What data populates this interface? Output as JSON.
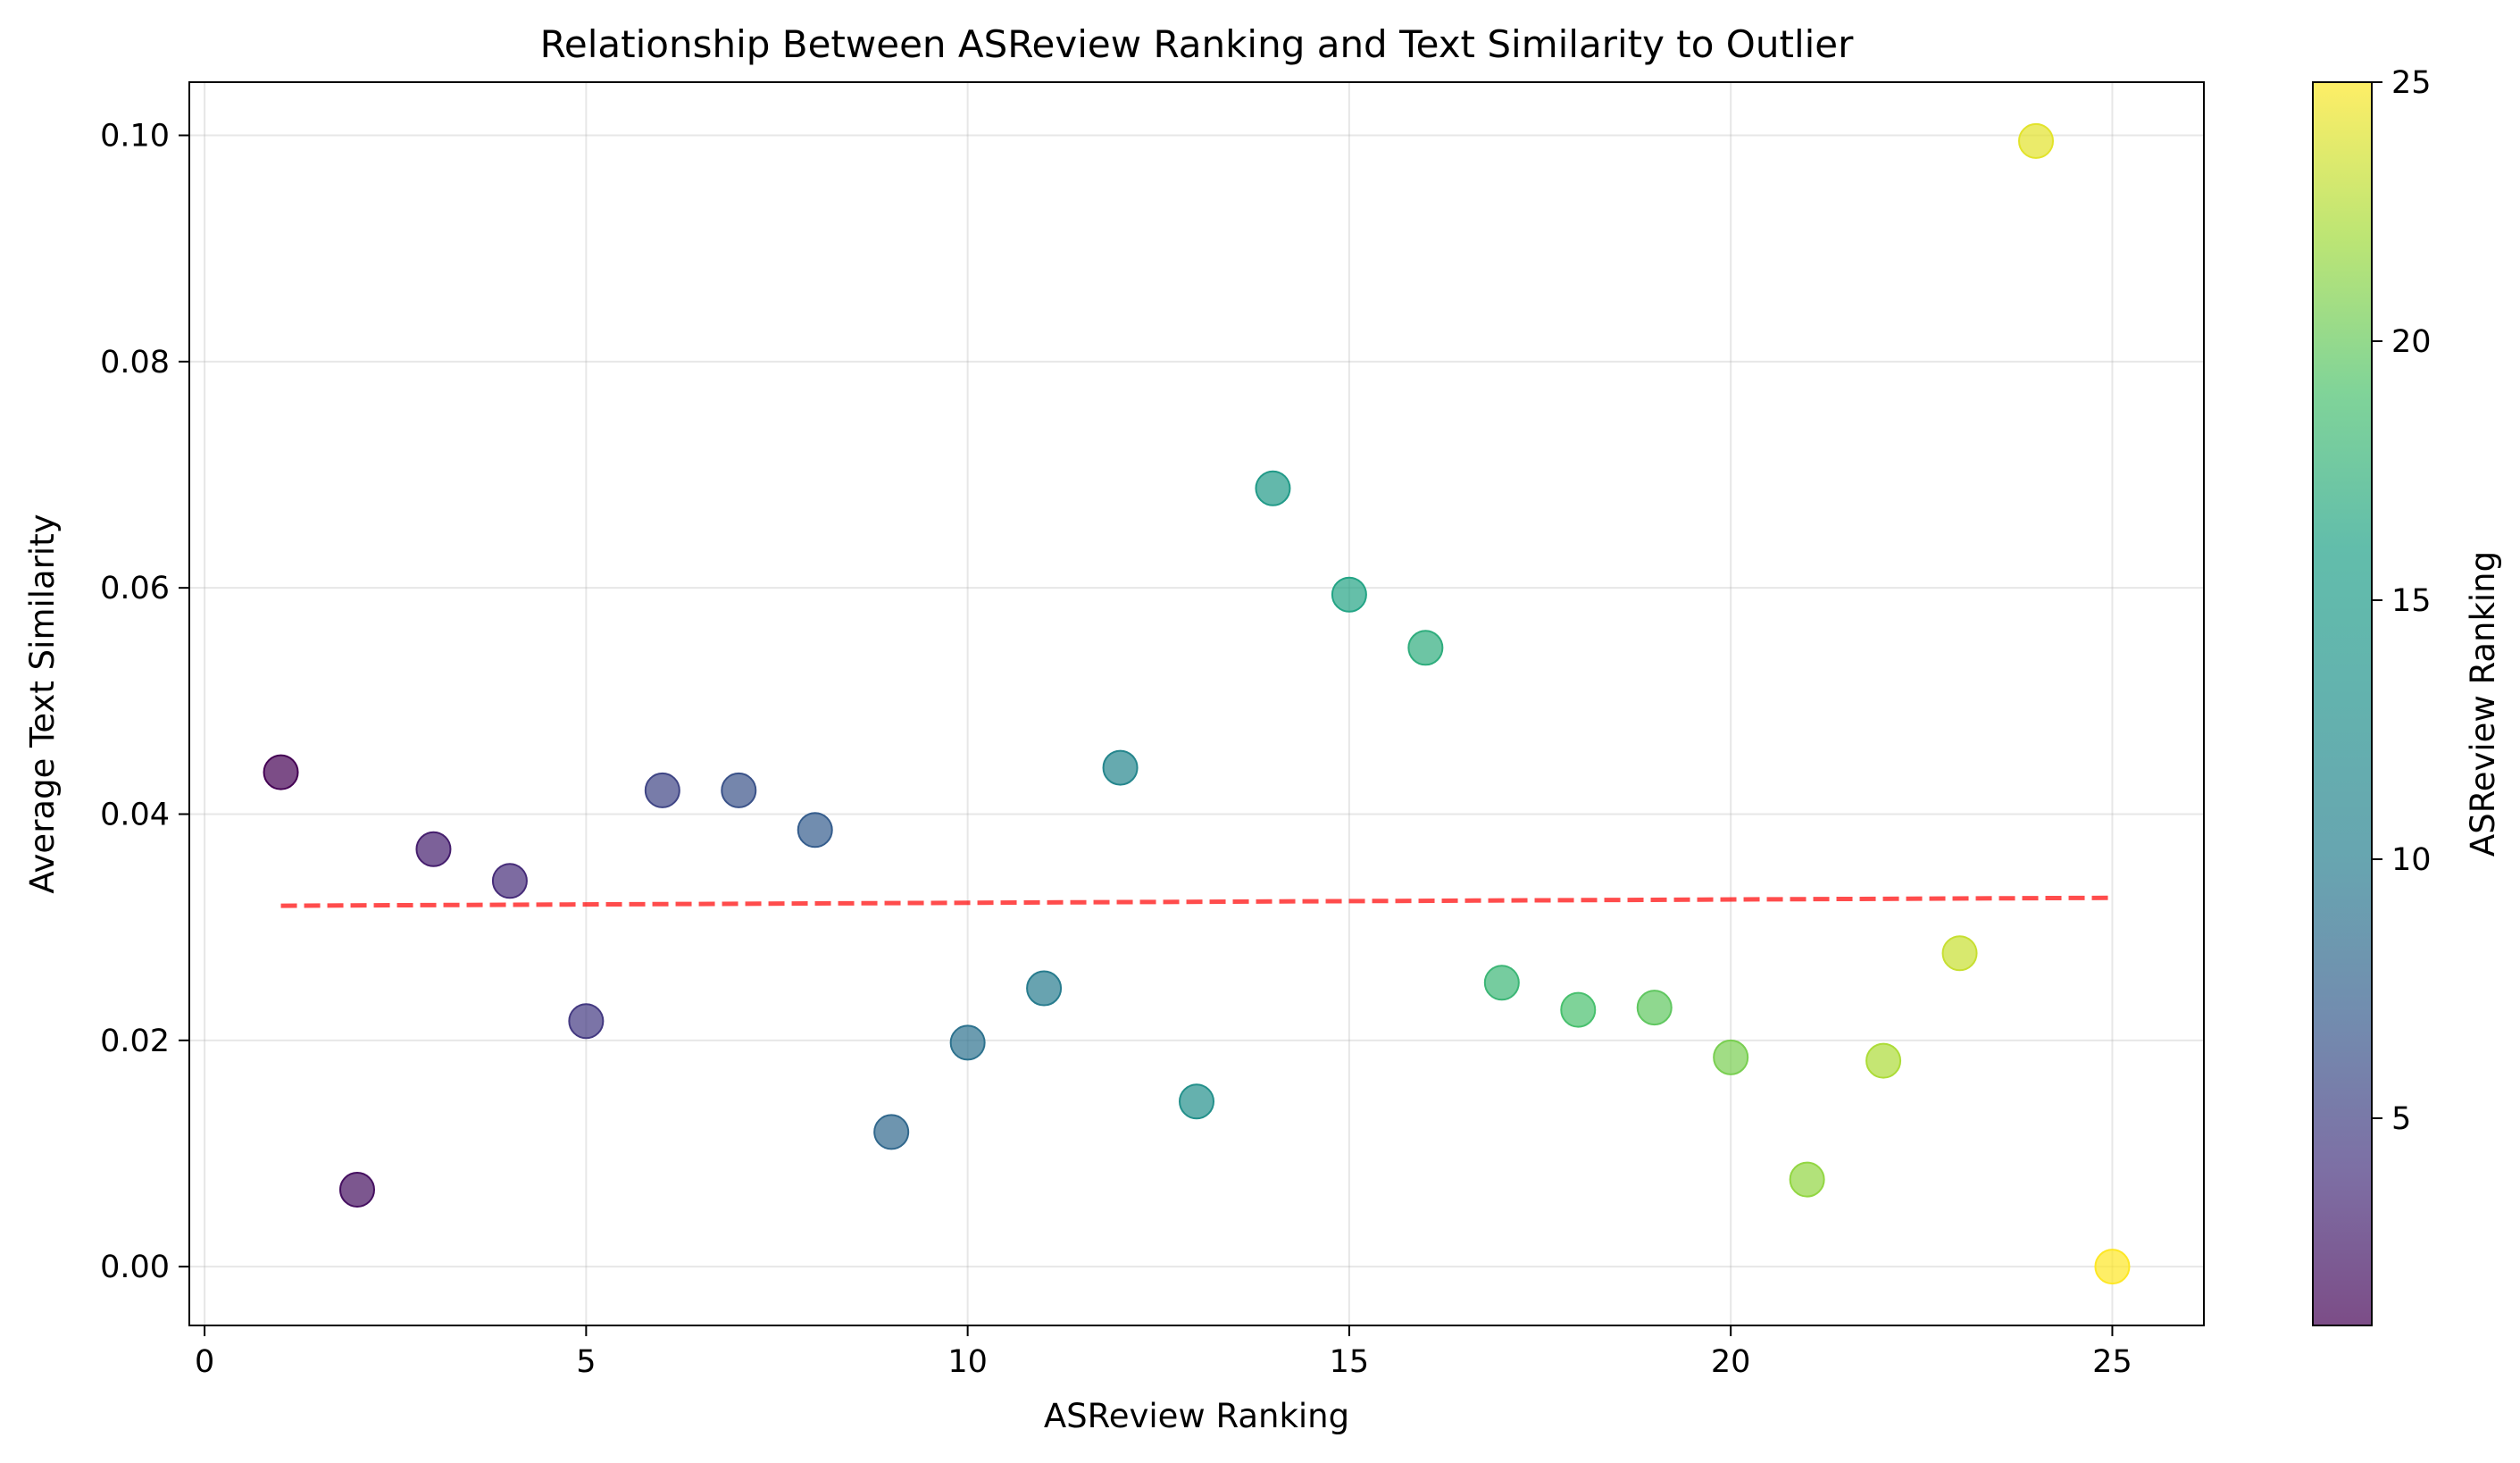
{
  "chart_data": {
    "type": "scatter",
    "title": "Relationship Between ASReview Ranking and Text Similarity to Outlier",
    "xlabel": "ASReview Ranking",
    "ylabel": "Average Text Similarity",
    "xlim": [
      -0.2,
      26.2
    ],
    "ylim": [
      -0.0052,
      0.1047
    ],
    "xticks": [
      0,
      5,
      10,
      15,
      20,
      25
    ],
    "yticks": [
      0.0,
      0.02,
      0.04,
      0.06,
      0.08,
      0.1
    ],
    "xtick_labels": [
      "0",
      "5",
      "10",
      "15",
      "20",
      "25"
    ],
    "ytick_labels": [
      "0.00",
      "0.02",
      "0.04",
      "0.06",
      "0.08",
      "0.10"
    ],
    "grid": true,
    "colormap": "viridis",
    "colorbar": {
      "label": "ASReview Ranking",
      "range": [
        1,
        25
      ],
      "ticks": [
        5,
        10,
        15,
        20,
        25
      ],
      "tick_labels": [
        "5",
        "10",
        "15",
        "20",
        "25"
      ]
    },
    "points": [
      {
        "x": 1,
        "y": 0.0437
      },
      {
        "x": 2,
        "y": 0.0068
      },
      {
        "x": 3,
        "y": 0.0369
      },
      {
        "x": 4,
        "y": 0.0341
      },
      {
        "x": 5,
        "y": 0.0217
      },
      {
        "x": 6,
        "y": 0.0421
      },
      {
        "x": 7,
        "y": 0.0421
      },
      {
        "x": 8,
        "y": 0.0386
      },
      {
        "x": 9,
        "y": 0.0119
      },
      {
        "x": 10,
        "y": 0.0198
      },
      {
        "x": 11,
        "y": 0.0246
      },
      {
        "x": 12,
        "y": 0.0441
      },
      {
        "x": 13,
        "y": 0.0146
      },
      {
        "x": 14,
        "y": 0.0688
      },
      {
        "x": 15,
        "y": 0.0594
      },
      {
        "x": 16,
        "y": 0.0547
      },
      {
        "x": 17,
        "y": 0.0251
      },
      {
        "x": 18,
        "y": 0.0227
      },
      {
        "x": 19,
        "y": 0.0229
      },
      {
        "x": 20,
        "y": 0.0185
      },
      {
        "x": 21,
        "y": 0.0077
      },
      {
        "x": 22,
        "y": 0.0182
      },
      {
        "x": 23,
        "y": 0.0277
      },
      {
        "x": 24,
        "y": 0.0995
      },
      {
        "x": 25,
        "y": 0.0
      }
    ],
    "trendline": {
      "x_range": [
        1,
        25
      ],
      "y_start": 0.0319,
      "y_end": 0.0326,
      "color": "#ff0000",
      "style": "dashed"
    },
    "marker_alpha": 0.7
  }
}
